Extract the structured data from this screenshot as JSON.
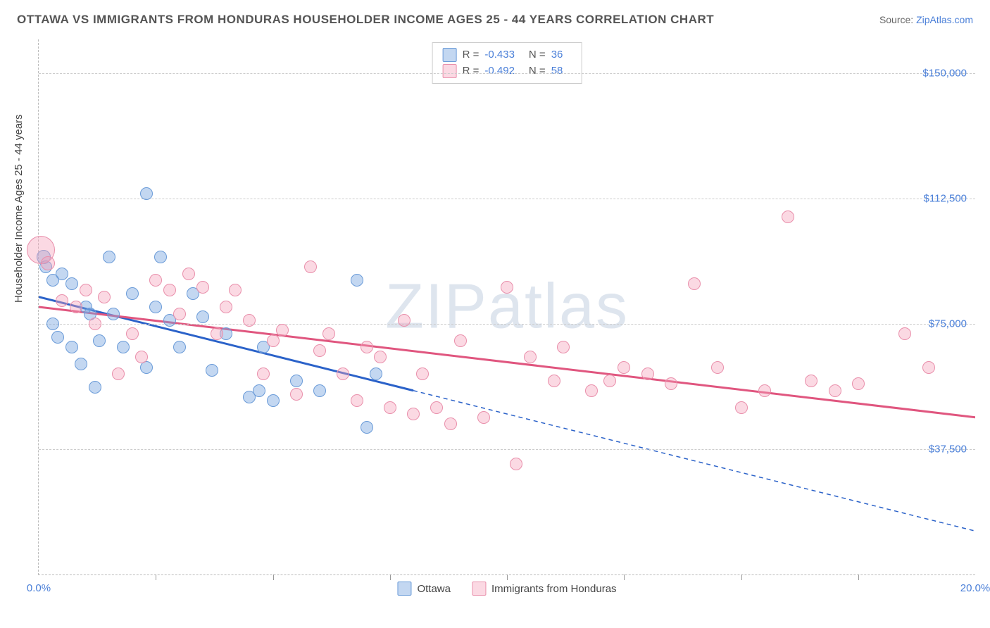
{
  "title": "OTTAWA VS IMMIGRANTS FROM HONDURAS HOUSEHOLDER INCOME AGES 25 - 44 YEARS CORRELATION CHART",
  "source_label": "Source:",
  "source_name": "ZipAtlas.com",
  "watermark": "ZIPatlas",
  "ylabel": "Householder Income Ages 25 - 44 years",
  "chart": {
    "type": "scatter",
    "xlim": [
      0,
      20
    ],
    "ylim": [
      0,
      160000
    ],
    "x_ticks_minor": [
      2.5,
      5,
      7.5,
      10,
      12.5,
      15,
      17.5
    ],
    "x_tick_labels": [
      {
        "x": 0,
        "label": "0.0%"
      },
      {
        "x": 20,
        "label": "20.0%"
      }
    ],
    "y_gridlines": [
      37500,
      75000,
      112500,
      150000
    ],
    "y_tick_labels": [
      {
        "y": 37500,
        "label": "$37,500"
      },
      {
        "y": 75000,
        "label": "$75,000"
      },
      {
        "y": 112500,
        "label": "$112,500"
      },
      {
        "y": 150000,
        "label": "$150,000"
      }
    ],
    "background_color": "#ffffff",
    "grid_color": "#cccccc",
    "series": [
      {
        "name": "Ottawa",
        "label": "Ottawa",
        "fill": "rgba(122,167,224,0.45)",
        "stroke": "#6a9bd8",
        "line_color": "#2b62c9",
        "R": "-0.433",
        "N": "36",
        "trend": {
          "x1": 0,
          "y1": 83000,
          "x2": 20,
          "y2": 13000,
          "solid_until_x": 8.0
        },
        "points": [
          {
            "x": 0.1,
            "y": 95000,
            "r": 10
          },
          {
            "x": 0.15,
            "y": 92000,
            "r": 9
          },
          {
            "x": 0.3,
            "y": 88000,
            "r": 9
          },
          {
            "x": 0.3,
            "y": 75000,
            "r": 9
          },
          {
            "x": 0.4,
            "y": 71000,
            "r": 9
          },
          {
            "x": 0.5,
            "y": 90000,
            "r": 9
          },
          {
            "x": 0.7,
            "y": 87000,
            "r": 9
          },
          {
            "x": 0.7,
            "y": 68000,
            "r": 9
          },
          {
            "x": 0.9,
            "y": 63000,
            "r": 9
          },
          {
            "x": 1.0,
            "y": 80000,
            "r": 9
          },
          {
            "x": 1.1,
            "y": 78000,
            "r": 9
          },
          {
            "x": 1.2,
            "y": 56000,
            "r": 9
          },
          {
            "x": 1.3,
            "y": 70000,
            "r": 9
          },
          {
            "x": 1.5,
            "y": 95000,
            "r": 9
          },
          {
            "x": 1.6,
            "y": 78000,
            "r": 9
          },
          {
            "x": 1.8,
            "y": 68000,
            "r": 9
          },
          {
            "x": 2.0,
            "y": 84000,
            "r": 9
          },
          {
            "x": 2.3,
            "y": 114000,
            "r": 9
          },
          {
            "x": 2.3,
            "y": 62000,
            "r": 9
          },
          {
            "x": 2.5,
            "y": 80000,
            "r": 9
          },
          {
            "x": 2.6,
            "y": 95000,
            "r": 9
          },
          {
            "x": 2.8,
            "y": 76000,
            "r": 9
          },
          {
            "x": 3.0,
            "y": 68000,
            "r": 9
          },
          {
            "x": 3.3,
            "y": 84000,
            "r": 9
          },
          {
            "x": 3.5,
            "y": 77000,
            "r": 9
          },
          {
            "x": 3.7,
            "y": 61000,
            "r": 9
          },
          {
            "x": 4.0,
            "y": 72000,
            "r": 9
          },
          {
            "x": 4.5,
            "y": 53000,
            "r": 9
          },
          {
            "x": 4.7,
            "y": 55000,
            "r": 9
          },
          {
            "x": 4.8,
            "y": 68000,
            "r": 9
          },
          {
            "x": 5.0,
            "y": 52000,
            "r": 9
          },
          {
            "x": 5.5,
            "y": 58000,
            "r": 9
          },
          {
            "x": 6.0,
            "y": 55000,
            "r": 9
          },
          {
            "x": 6.8,
            "y": 88000,
            "r": 9
          },
          {
            "x": 7.0,
            "y": 44000,
            "r": 9
          },
          {
            "x": 7.2,
            "y": 60000,
            "r": 9
          }
        ]
      },
      {
        "name": "Honduras",
        "label": "Immigrants from Honduras",
        "fill": "rgba(244,160,185,0.40)",
        "stroke": "#e98fab",
        "line_color": "#e0567f",
        "R": "-0.492",
        "N": "58",
        "trend": {
          "x1": 0,
          "y1": 80000,
          "x2": 20,
          "y2": 47000,
          "solid_until_x": 20
        },
        "points": [
          {
            "x": 0.05,
            "y": 97000,
            "r": 20
          },
          {
            "x": 0.2,
            "y": 93000,
            "r": 10
          },
          {
            "x": 0.5,
            "y": 82000,
            "r": 9
          },
          {
            "x": 0.8,
            "y": 80000,
            "r": 9
          },
          {
            "x": 1.0,
            "y": 85000,
            "r": 9
          },
          {
            "x": 1.2,
            "y": 75000,
            "r": 9
          },
          {
            "x": 1.4,
            "y": 83000,
            "r": 9
          },
          {
            "x": 1.7,
            "y": 60000,
            "r": 9
          },
          {
            "x": 2.0,
            "y": 72000,
            "r": 9
          },
          {
            "x": 2.2,
            "y": 65000,
            "r": 9
          },
          {
            "x": 2.5,
            "y": 88000,
            "r": 9
          },
          {
            "x": 2.8,
            "y": 85000,
            "r": 9
          },
          {
            "x": 3.0,
            "y": 78000,
            "r": 9
          },
          {
            "x": 3.2,
            "y": 90000,
            "r": 9
          },
          {
            "x": 3.5,
            "y": 86000,
            "r": 9
          },
          {
            "x": 3.8,
            "y": 72000,
            "r": 9
          },
          {
            "x": 4.0,
            "y": 80000,
            "r": 9
          },
          {
            "x": 4.2,
            "y": 85000,
            "r": 9
          },
          {
            "x": 4.5,
            "y": 76000,
            "r": 9
          },
          {
            "x": 4.8,
            "y": 60000,
            "r": 9
          },
          {
            "x": 5.0,
            "y": 70000,
            "r": 9
          },
          {
            "x": 5.2,
            "y": 73000,
            "r": 9
          },
          {
            "x": 5.5,
            "y": 54000,
            "r": 9
          },
          {
            "x": 5.8,
            "y": 92000,
            "r": 9
          },
          {
            "x": 6.0,
            "y": 67000,
            "r": 9
          },
          {
            "x": 6.2,
            "y": 72000,
            "r": 9
          },
          {
            "x": 6.5,
            "y": 60000,
            "r": 9
          },
          {
            "x": 6.8,
            "y": 52000,
            "r": 9
          },
          {
            "x": 7.0,
            "y": 68000,
            "r": 9
          },
          {
            "x": 7.3,
            "y": 65000,
            "r": 9
          },
          {
            "x": 7.5,
            "y": 50000,
            "r": 9
          },
          {
            "x": 7.8,
            "y": 76000,
            "r": 9
          },
          {
            "x": 8.0,
            "y": 48000,
            "r": 9
          },
          {
            "x": 8.2,
            "y": 60000,
            "r": 9
          },
          {
            "x": 8.5,
            "y": 50000,
            "r": 9
          },
          {
            "x": 8.8,
            "y": 45000,
            "r": 9
          },
          {
            "x": 9.0,
            "y": 70000,
            "r": 9
          },
          {
            "x": 9.5,
            "y": 47000,
            "r": 9
          },
          {
            "x": 10.0,
            "y": 86000,
            "r": 9
          },
          {
            "x": 10.2,
            "y": 33000,
            "r": 9
          },
          {
            "x": 10.5,
            "y": 65000,
            "r": 9
          },
          {
            "x": 11.0,
            "y": 58000,
            "r": 9
          },
          {
            "x": 11.2,
            "y": 68000,
            "r": 9
          },
          {
            "x": 11.8,
            "y": 55000,
            "r": 9
          },
          {
            "x": 12.2,
            "y": 58000,
            "r": 9
          },
          {
            "x": 12.5,
            "y": 62000,
            "r": 9
          },
          {
            "x": 13.0,
            "y": 60000,
            "r": 9
          },
          {
            "x": 13.5,
            "y": 57000,
            "r": 9
          },
          {
            "x": 14.0,
            "y": 87000,
            "r": 9
          },
          {
            "x": 14.5,
            "y": 62000,
            "r": 9
          },
          {
            "x": 15.0,
            "y": 50000,
            "r": 9
          },
          {
            "x": 15.5,
            "y": 55000,
            "r": 9
          },
          {
            "x": 16.0,
            "y": 107000,
            "r": 9
          },
          {
            "x": 16.5,
            "y": 58000,
            "r": 9
          },
          {
            "x": 17.0,
            "y": 55000,
            "r": 9
          },
          {
            "x": 17.5,
            "y": 57000,
            "r": 9
          },
          {
            "x": 18.5,
            "y": 72000,
            "r": 9
          },
          {
            "x": 19.0,
            "y": 62000,
            "r": 9
          }
        ]
      }
    ]
  }
}
